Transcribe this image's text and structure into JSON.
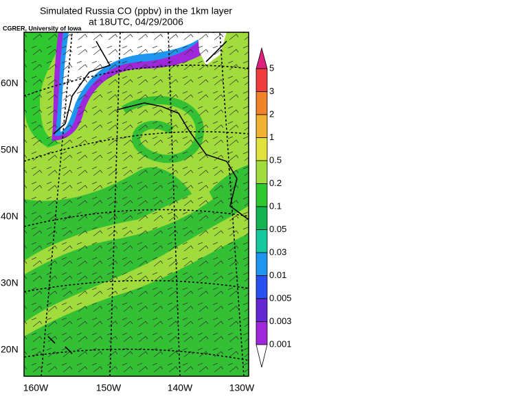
{
  "title": [
    "Simulated Russia CO (ppbv) in the 1km layer",
    "at 18UTC, 04/29/2006"
  ],
  "credit": "CGRER, University of Iowa",
  "lat_labels": [
    "60N",
    "50N",
    "40N",
    "30N",
    "20N"
  ],
  "lon_labels": [
    "160W",
    "150W",
    "140W",
    "130W"
  ],
  "colorbar": {
    "labels": [
      "5",
      "3",
      "2",
      "1",
      "0.5",
      "0.2",
      "0.1",
      "0.05",
      "0.03",
      "0.01",
      "0.005",
      "0.003",
      "0.001"
    ],
    "colors": [
      "#e0207e",
      "#f03c3c",
      "#f0822a",
      "#f0b432",
      "#e2e23c",
      "#a2dc3c",
      "#30c830",
      "#14b450",
      "#14c8a0",
      "#1e96f0",
      "#2850f0",
      "#6428d2",
      "#a028dc",
      "#ffffff"
    ]
  }
}
